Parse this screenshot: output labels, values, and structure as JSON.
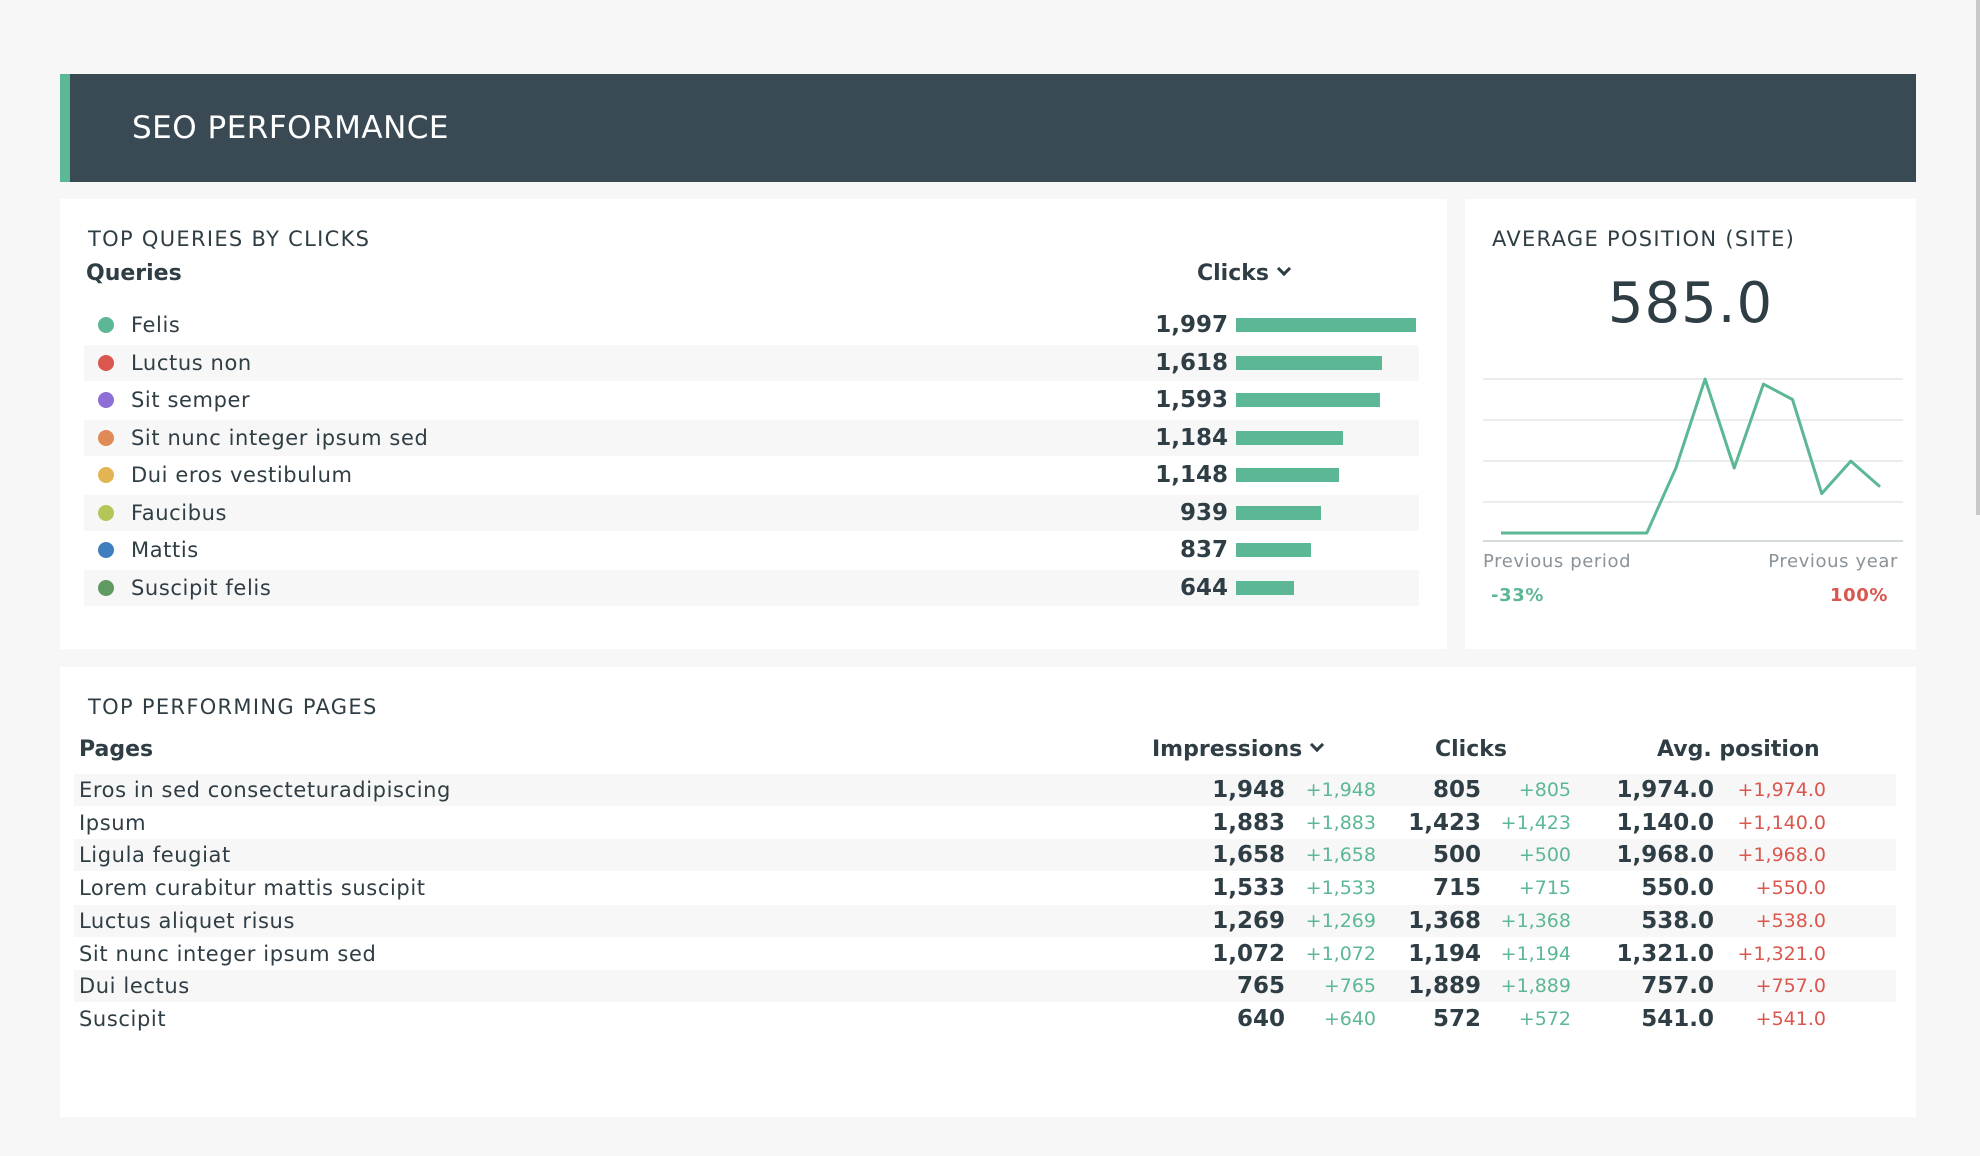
{
  "header": {
    "title": "SEO PERFORMANCE"
  },
  "queries": {
    "title": "TOP QUERIES BY CLICKS",
    "col_query": "Queries",
    "col_clicks": "Clicks",
    "max_clicks": 1997,
    "rows": [
      {
        "label": "Felis",
        "clicks": "1,997",
        "value": 1997,
        "color": "#5cb894"
      },
      {
        "label": "Luctus non",
        "clicks": "1,618",
        "value": 1618,
        "color": "#d9574f"
      },
      {
        "label": "Sit semper",
        "clicks": "1,593",
        "value": 1593,
        "color": "#8e6fd8"
      },
      {
        "label": "Sit nunc integer ipsum sed",
        "clicks": "1,184",
        "value": 1184,
        "color": "#e08a55"
      },
      {
        "label": "Dui eros vestibulum",
        "clicks": "1,148",
        "value": 1148,
        "color": "#e2b552"
      },
      {
        "label": "Faucibus",
        "clicks": "939",
        "value": 939,
        "color": "#b3c657"
      },
      {
        "label": "Mattis",
        "clicks": "837",
        "value": 837,
        "color": "#3f7fbf"
      },
      {
        "label": "Suscipit felis",
        "clicks": "644",
        "value": 644,
        "color": "#5e9a62"
      }
    ]
  },
  "avg_position": {
    "title": "AVERAGE POSITION (SITE)",
    "value": "585.0",
    "sparkline": [
      0,
      0,
      0,
      0,
      0,
      0,
      380,
      900,
      380,
      870,
      780,
      230,
      420,
      270
    ],
    "previous_period_label": "Previous period",
    "previous_period_value": "-33%",
    "previous_year_label": "Previous year",
    "previous_year_value": "100%",
    "color_pos": "#5cb894",
    "color_neg": "#d9574f"
  },
  "pages": {
    "title": "TOP PERFORMING PAGES",
    "col_pages": "Pages",
    "col_impressions": "Impressions",
    "col_clicks": "Clicks",
    "col_avg_position": "Avg. position",
    "rows": [
      {
        "page": "Eros in sed consecteturadipiscing",
        "impressions": "1,948",
        "impressions_delta": "+1,948",
        "clicks": "805",
        "clicks_delta": "+805",
        "position": "1,974.0",
        "position_delta": "+1,974.0"
      },
      {
        "page": "Ipsum",
        "impressions": "1,883",
        "impressions_delta": "+1,883",
        "clicks": "1,423",
        "clicks_delta": "+1,423",
        "position": "1,140.0",
        "position_delta": "+1,140.0"
      },
      {
        "page": "Ligula feugiat",
        "impressions": "1,658",
        "impressions_delta": "+1,658",
        "clicks": "500",
        "clicks_delta": "+500",
        "position": "1,968.0",
        "position_delta": "+1,968.0"
      },
      {
        "page": "Lorem curabitur mattis suscipit",
        "impressions": "1,533",
        "impressions_delta": "+1,533",
        "clicks": "715",
        "clicks_delta": "+715",
        "position": "550.0",
        "position_delta": "+550.0"
      },
      {
        "page": "Luctus aliquet risus",
        "impressions": "1,269",
        "impressions_delta": "+1,269",
        "clicks": "1,368",
        "clicks_delta": "+1,368",
        "position": "538.0",
        "position_delta": "+538.0"
      },
      {
        "page": "Sit nunc integer ipsum sed",
        "impressions": "1,072",
        "impressions_delta": "+1,072",
        "clicks": "1,194",
        "clicks_delta": "+1,194",
        "position": "1,321.0",
        "position_delta": "+1,321.0"
      },
      {
        "page": "Dui lectus",
        "impressions": "765",
        "impressions_delta": "+765",
        "clicks": "1,889",
        "clicks_delta": "+1,889",
        "position": "757.0",
        "position_delta": "+757.0"
      },
      {
        "page": "Suscipit",
        "impressions": "640",
        "impressions_delta": "+640",
        "clicks": "572",
        "clicks_delta": "+572",
        "position": "541.0",
        "position_delta": "+541.0"
      }
    ]
  }
}
